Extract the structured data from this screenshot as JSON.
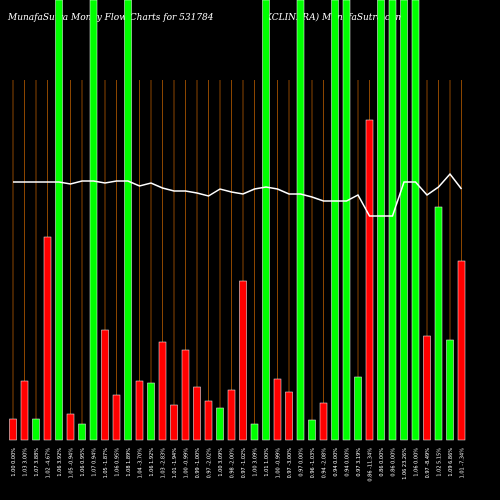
{
  "chart_data": {
    "type": "bar",
    "title": "MunafaSutra  Money Flow  Charts for 531784",
    "subtitle": "(XCLINFRA) MunafaSutra.com",
    "ylim": [
      0,
      440
    ],
    "categories": [
      "1.00 0.00%",
      "1.03 3.00%",
      "1.07 3.88%",
      "1.02 -4.67%",
      "1.06 3.92%",
      "1.05 -0.94%",
      "1.06 0.95%",
      "1.07 0.94%",
      "1.05 -1.87%",
      "1.06 0.95%",
      "1.08 1.89%",
      "1.04 -3.70%",
      "1.06 1.92%",
      "1.03 -2.83%",
      "1.01 -1.94%",
      "1.00 -0.99%",
      "0.99 -1.00%",
      "0.97 -2.02%",
      "1.00 3.09%",
      "0.98 -2.00%",
      "0.97 -1.02%",
      "1.00 3.09%",
      "1.01 1.00%",
      "1.00 -0.99%",
      "0.97 -3.00%",
      "0.97 0.00%",
      "0.96 -1.03%",
      "0.94 -2.08%",
      "0.94 0.00%",
      "0.94 0.00%",
      "0.97 3.19%",
      "0.86 -11.34%",
      "0.86 0.00%",
      "0.86 0.00%",
      "1.06 23.26%",
      "1.06 0.00%",
      "0.97 -8.49%",
      "1.02 5.15%",
      "1.09 6.86%",
      "1.01 -7.34%"
    ],
    "bars": {
      "values": [
        21,
        59,
        21,
        203,
        440,
        26,
        16,
        440,
        110,
        45,
        440,
        59,
        57,
        98,
        35,
        90,
        53,
        39,
        32,
        50,
        159,
        16,
        440,
        61,
        48,
        440,
        20,
        37,
        440,
        440,
        63,
        320,
        440,
        440,
        440,
        440,
        104,
        233,
        100,
        179
      ],
      "colors": [
        "#ff0000",
        "#ff0000",
        "#00ff00",
        "#ff0000",
        "#00ff00",
        "#ff0000",
        "#00ff00",
        "#00ff00",
        "#ff0000",
        "#ff0000",
        "#00ff00",
        "#ff0000",
        "#00ff00",
        "#ff0000",
        "#ff0000",
        "#ff0000",
        "#ff0000",
        "#ff0000",
        "#00ff00",
        "#ff0000",
        "#ff0000",
        "#00ff00",
        "#00ff00",
        "#ff0000",
        "#ff0000",
        "#00ff00",
        "#00ff00",
        "#ff0000",
        "#00ff00",
        "#00ff00",
        "#00ff00",
        "#ff0000",
        "#00ff00",
        "#00ff00",
        "#00ff00",
        "#00ff00",
        "#ff0000",
        "#00ff00",
        "#00ff00",
        "#ff0000"
      ]
    },
    "line": {
      "color": "#ffffff",
      "values": [
        258,
        258,
        258,
        258,
        258,
        256,
        259,
        259,
        257,
        259,
        259,
        254,
        257,
        252,
        249,
        249,
        247,
        244,
        251,
        248,
        246,
        251,
        253,
        251,
        246,
        246,
        243,
        239,
        239,
        239,
        245,
        224,
        224,
        224,
        258,
        258,
        245,
        253,
        266,
        251
      ]
    }
  }
}
